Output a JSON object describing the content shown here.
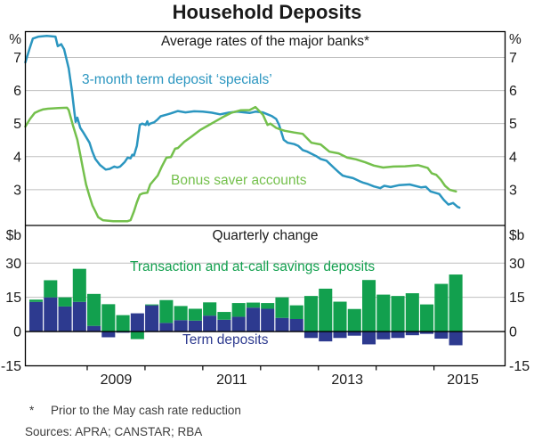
{
  "title": "Household Deposits",
  "footnote_marker": "*",
  "footnote_text": "Prior to the May cash rate reduction",
  "sources_text": "Sources:  APRA; CANSTAR; RBA",
  "xaxis": {
    "xlim": [
      2007.93,
      2016.23
    ],
    "tick_years": [
      2009,
      2010,
      2011,
      2012,
      2013,
      2014,
      2015
    ],
    "year_labels": [
      {
        "text": "2009",
        "t": 2009.5
      },
      {
        "text": "2011",
        "t": 2011.5
      },
      {
        "text": "2013",
        "t": 2013.5
      },
      {
        "text": "2015",
        "t": 2015.5
      }
    ]
  },
  "chart_data": [
    {
      "panel": "top",
      "type": "line",
      "title": "Average rates of the major banks*",
      "unit_left": "%",
      "unit_right": "%",
      "ylim": [
        1.92,
        7.78
      ],
      "yticks": [
        3,
        4,
        5,
        6,
        7
      ],
      "grid": true,
      "legend_position": "inside",
      "series": [
        {
          "name": "3-month term deposit specials",
          "label": "3-month term deposit ‘specials’",
          "color": "#2b96c0",
          "points": [
            [
              2007.93,
              6.85
            ],
            [
              2008.0,
              7.25
            ],
            [
              2008.06,
              7.57
            ],
            [
              2008.16,
              7.63
            ],
            [
              2008.3,
              7.65
            ],
            [
              2008.45,
              7.63
            ],
            [
              2008.49,
              7.34
            ],
            [
              2008.55,
              7.4
            ],
            [
              2008.6,
              7.25
            ],
            [
              2008.68,
              6.67
            ],
            [
              2008.73,
              6.05
            ],
            [
              2008.78,
              5.32
            ],
            [
              2008.8,
              5.05
            ],
            [
              2008.83,
              5.18
            ],
            [
              2008.88,
              4.87
            ],
            [
              2008.93,
              4.74
            ],
            [
              2009.04,
              4.42
            ],
            [
              2009.09,
              4.15
            ],
            [
              2009.14,
              3.93
            ],
            [
              2009.22,
              3.75
            ],
            [
              2009.32,
              3.61
            ],
            [
              2009.39,
              3.63
            ],
            [
              2009.47,
              3.7
            ],
            [
              2009.52,
              3.67
            ],
            [
              2009.57,
              3.7
            ],
            [
              2009.65,
              3.84
            ],
            [
              2009.7,
              3.97
            ],
            [
              2009.75,
              3.95
            ],
            [
              2009.78,
              4.06
            ],
            [
              2009.81,
              4.04
            ],
            [
              2009.86,
              4.33
            ],
            [
              2009.91,
              4.96
            ],
            [
              2009.95,
              5.0
            ],
            [
              2010.01,
              4.96
            ],
            [
              2010.04,
              5.07
            ],
            [
              2010.06,
              4.96
            ],
            [
              2010.09,
              5.0
            ],
            [
              2010.16,
              5.04
            ],
            [
              2010.22,
              5.13
            ],
            [
              2010.27,
              5.22
            ],
            [
              2010.37,
              5.27
            ],
            [
              2010.45,
              5.31
            ],
            [
              2010.57,
              5.38
            ],
            [
              2010.7,
              5.34
            ],
            [
              2010.85,
              5.37
            ],
            [
              2011.0,
              5.36
            ],
            [
              2011.15,
              5.33
            ],
            [
              2011.3,
              5.28
            ],
            [
              2011.45,
              5.33
            ],
            [
              2011.6,
              5.36
            ],
            [
              2011.81,
              5.32
            ],
            [
              2011.91,
              5.36
            ],
            [
              2012.04,
              5.34
            ],
            [
              2012.12,
              5.28
            ],
            [
              2012.19,
              5.23
            ],
            [
              2012.27,
              5.14
            ],
            [
              2012.32,
              4.96
            ],
            [
              2012.4,
              4.51
            ],
            [
              2012.47,
              4.42
            ],
            [
              2012.58,
              4.38
            ],
            [
              2012.65,
              4.33
            ],
            [
              2012.73,
              4.2
            ],
            [
              2012.81,
              4.15
            ],
            [
              2012.96,
              4.02
            ],
            [
              2013.04,
              3.93
            ],
            [
              2013.14,
              3.88
            ],
            [
              2013.27,
              3.66
            ],
            [
              2013.35,
              3.53
            ],
            [
              2013.42,
              3.43
            ],
            [
              2013.5,
              3.39
            ],
            [
              2013.6,
              3.35
            ],
            [
              2013.71,
              3.26
            ],
            [
              2013.78,
              3.21
            ],
            [
              2013.86,
              3.17
            ],
            [
              2013.96,
              3.1
            ],
            [
              2014.07,
              3.05
            ],
            [
              2014.14,
              3.12
            ],
            [
              2014.25,
              3.08
            ],
            [
              2014.4,
              3.14
            ],
            [
              2014.58,
              3.16
            ],
            [
              2014.78,
              3.07
            ],
            [
              2014.86,
              3.09
            ],
            [
              2014.94,
              2.95
            ],
            [
              2015.09,
              2.87
            ],
            [
              2015.17,
              2.69
            ],
            [
              2015.25,
              2.55
            ],
            [
              2015.33,
              2.6
            ],
            [
              2015.41,
              2.48
            ],
            [
              2015.44,
              2.46
            ]
          ]
        },
        {
          "name": "Bonus saver accounts",
          "label": "Bonus saver accounts",
          "color": "#74c04c",
          "points": [
            [
              2007.93,
              4.91
            ],
            [
              2008.01,
              5.14
            ],
            [
              2008.09,
              5.32
            ],
            [
              2008.16,
              5.38
            ],
            [
              2008.24,
              5.43
            ],
            [
              2008.32,
              5.45
            ],
            [
              2008.5,
              5.47
            ],
            [
              2008.65,
              5.48
            ],
            [
              2008.68,
              5.41
            ],
            [
              2008.75,
              4.96
            ],
            [
              2008.83,
              4.51
            ],
            [
              2008.88,
              4.06
            ],
            [
              2008.93,
              3.61
            ],
            [
              2008.98,
              3.16
            ],
            [
              2009.04,
              2.8
            ],
            [
              2009.09,
              2.53
            ],
            [
              2009.14,
              2.35
            ],
            [
              2009.19,
              2.17
            ],
            [
              2009.27,
              2.08
            ],
            [
              2009.45,
              2.05
            ],
            [
              2009.7,
              2.05
            ],
            [
              2009.75,
              2.08
            ],
            [
              2009.81,
              2.35
            ],
            [
              2009.86,
              2.62
            ],
            [
              2009.91,
              2.85
            ],
            [
              2009.96,
              2.89
            ],
            [
              2010.04,
              2.91
            ],
            [
              2010.09,
              3.16
            ],
            [
              2010.22,
              3.43
            ],
            [
              2010.29,
              3.7
            ],
            [
              2010.37,
              3.97
            ],
            [
              2010.45,
              3.99
            ],
            [
              2010.52,
              4.24
            ],
            [
              2010.57,
              4.26
            ],
            [
              2010.68,
              4.45
            ],
            [
              2010.8,
              4.6
            ],
            [
              2010.95,
              4.8
            ],
            [
              2011.1,
              4.95
            ],
            [
              2011.2,
              5.05
            ],
            [
              2011.35,
              5.2
            ],
            [
              2011.5,
              5.33
            ],
            [
              2011.65,
              5.4
            ],
            [
              2011.81,
              5.41
            ],
            [
              2011.91,
              5.5
            ],
            [
              2012.04,
              5.27
            ],
            [
              2012.12,
              4.96
            ],
            [
              2012.17,
              5.0
            ],
            [
              2012.27,
              4.87
            ],
            [
              2012.35,
              4.82
            ],
            [
              2012.42,
              4.78
            ],
            [
              2012.58,
              4.73
            ],
            [
              2012.73,
              4.69
            ],
            [
              2012.88,
              4.42
            ],
            [
              2013.04,
              4.37
            ],
            [
              2013.19,
              4.15
            ],
            [
              2013.35,
              4.1
            ],
            [
              2013.5,
              3.97
            ],
            [
              2013.65,
              3.92
            ],
            [
              2013.81,
              3.83
            ],
            [
              2013.96,
              3.73
            ],
            [
              2014.12,
              3.67
            ],
            [
              2014.3,
              3.7
            ],
            [
              2014.5,
              3.71
            ],
            [
              2014.73,
              3.74
            ],
            [
              2014.89,
              3.66
            ],
            [
              2014.96,
              3.5
            ],
            [
              2015.04,
              3.45
            ],
            [
              2015.12,
              3.3
            ],
            [
              2015.19,
              3.12
            ],
            [
              2015.27,
              3.0
            ],
            [
              2015.38,
              2.95
            ]
          ]
        }
      ]
    },
    {
      "panel": "bottom",
      "type": "bar",
      "stacked": true,
      "title": "Quarterly change",
      "unit_left": "$b",
      "unit_right": "$b",
      "ylim": [
        -15,
        46.5
      ],
      "yticks": [
        -15,
        0,
        15,
        30
      ],
      "grid": true,
      "bar_start": 2007.99,
      "bar_interval": 0.2504,
      "bar_quarters": [
        "2008Q1",
        "2008Q2",
        "2008Q3",
        "2008Q4",
        "2009Q1",
        "2009Q2",
        "2009Q3",
        "2009Q4",
        "2010Q1",
        "2010Q2",
        "2010Q3",
        "2010Q4",
        "2011Q1",
        "2011Q2",
        "2011Q3",
        "2011Q4",
        "2012Q1",
        "2012Q2",
        "2012Q3",
        "2012Q4",
        "2013Q1",
        "2013Q2",
        "2013Q3",
        "2013Q4",
        "2014Q1",
        "2014Q2",
        "2014Q3",
        "2014Q4",
        "2015Q1",
        "2015Q2"
      ],
      "series": [
        {
          "name": "Term deposits",
          "label": "Term deposits",
          "color": "#2d3a8f",
          "values": [
            13,
            15,
            11,
            13,
            2.5,
            -2.5,
            -0.5,
            8,
            11.5,
            3.8,
            5,
            4.8,
            7,
            5.2,
            6.5,
            10.5,
            10,
            6,
            5.5,
            -2.8,
            -4.3,
            -2.8,
            -1.8,
            -5.6,
            -3.4,
            -2.8,
            -1.6,
            -1,
            -3.1,
            -6
          ]
        },
        {
          "name": "Transaction and at-call savings deposits",
          "label": "Transaction and at-call savings deposits",
          "color": "#12a04e",
          "values": [
            1,
            7.5,
            4,
            14.5,
            14,
            12,
            7.2,
            -3.3,
            0.4,
            10,
            6.2,
            5.2,
            5.8,
            3.4,
            6,
            2.2,
            2.5,
            9,
            6,
            15.6,
            18.8,
            13.1,
            9.9,
            22.6,
            16.2,
            15.6,
            16.8,
            11.9,
            20.9,
            25
          ]
        }
      ]
    }
  ]
}
